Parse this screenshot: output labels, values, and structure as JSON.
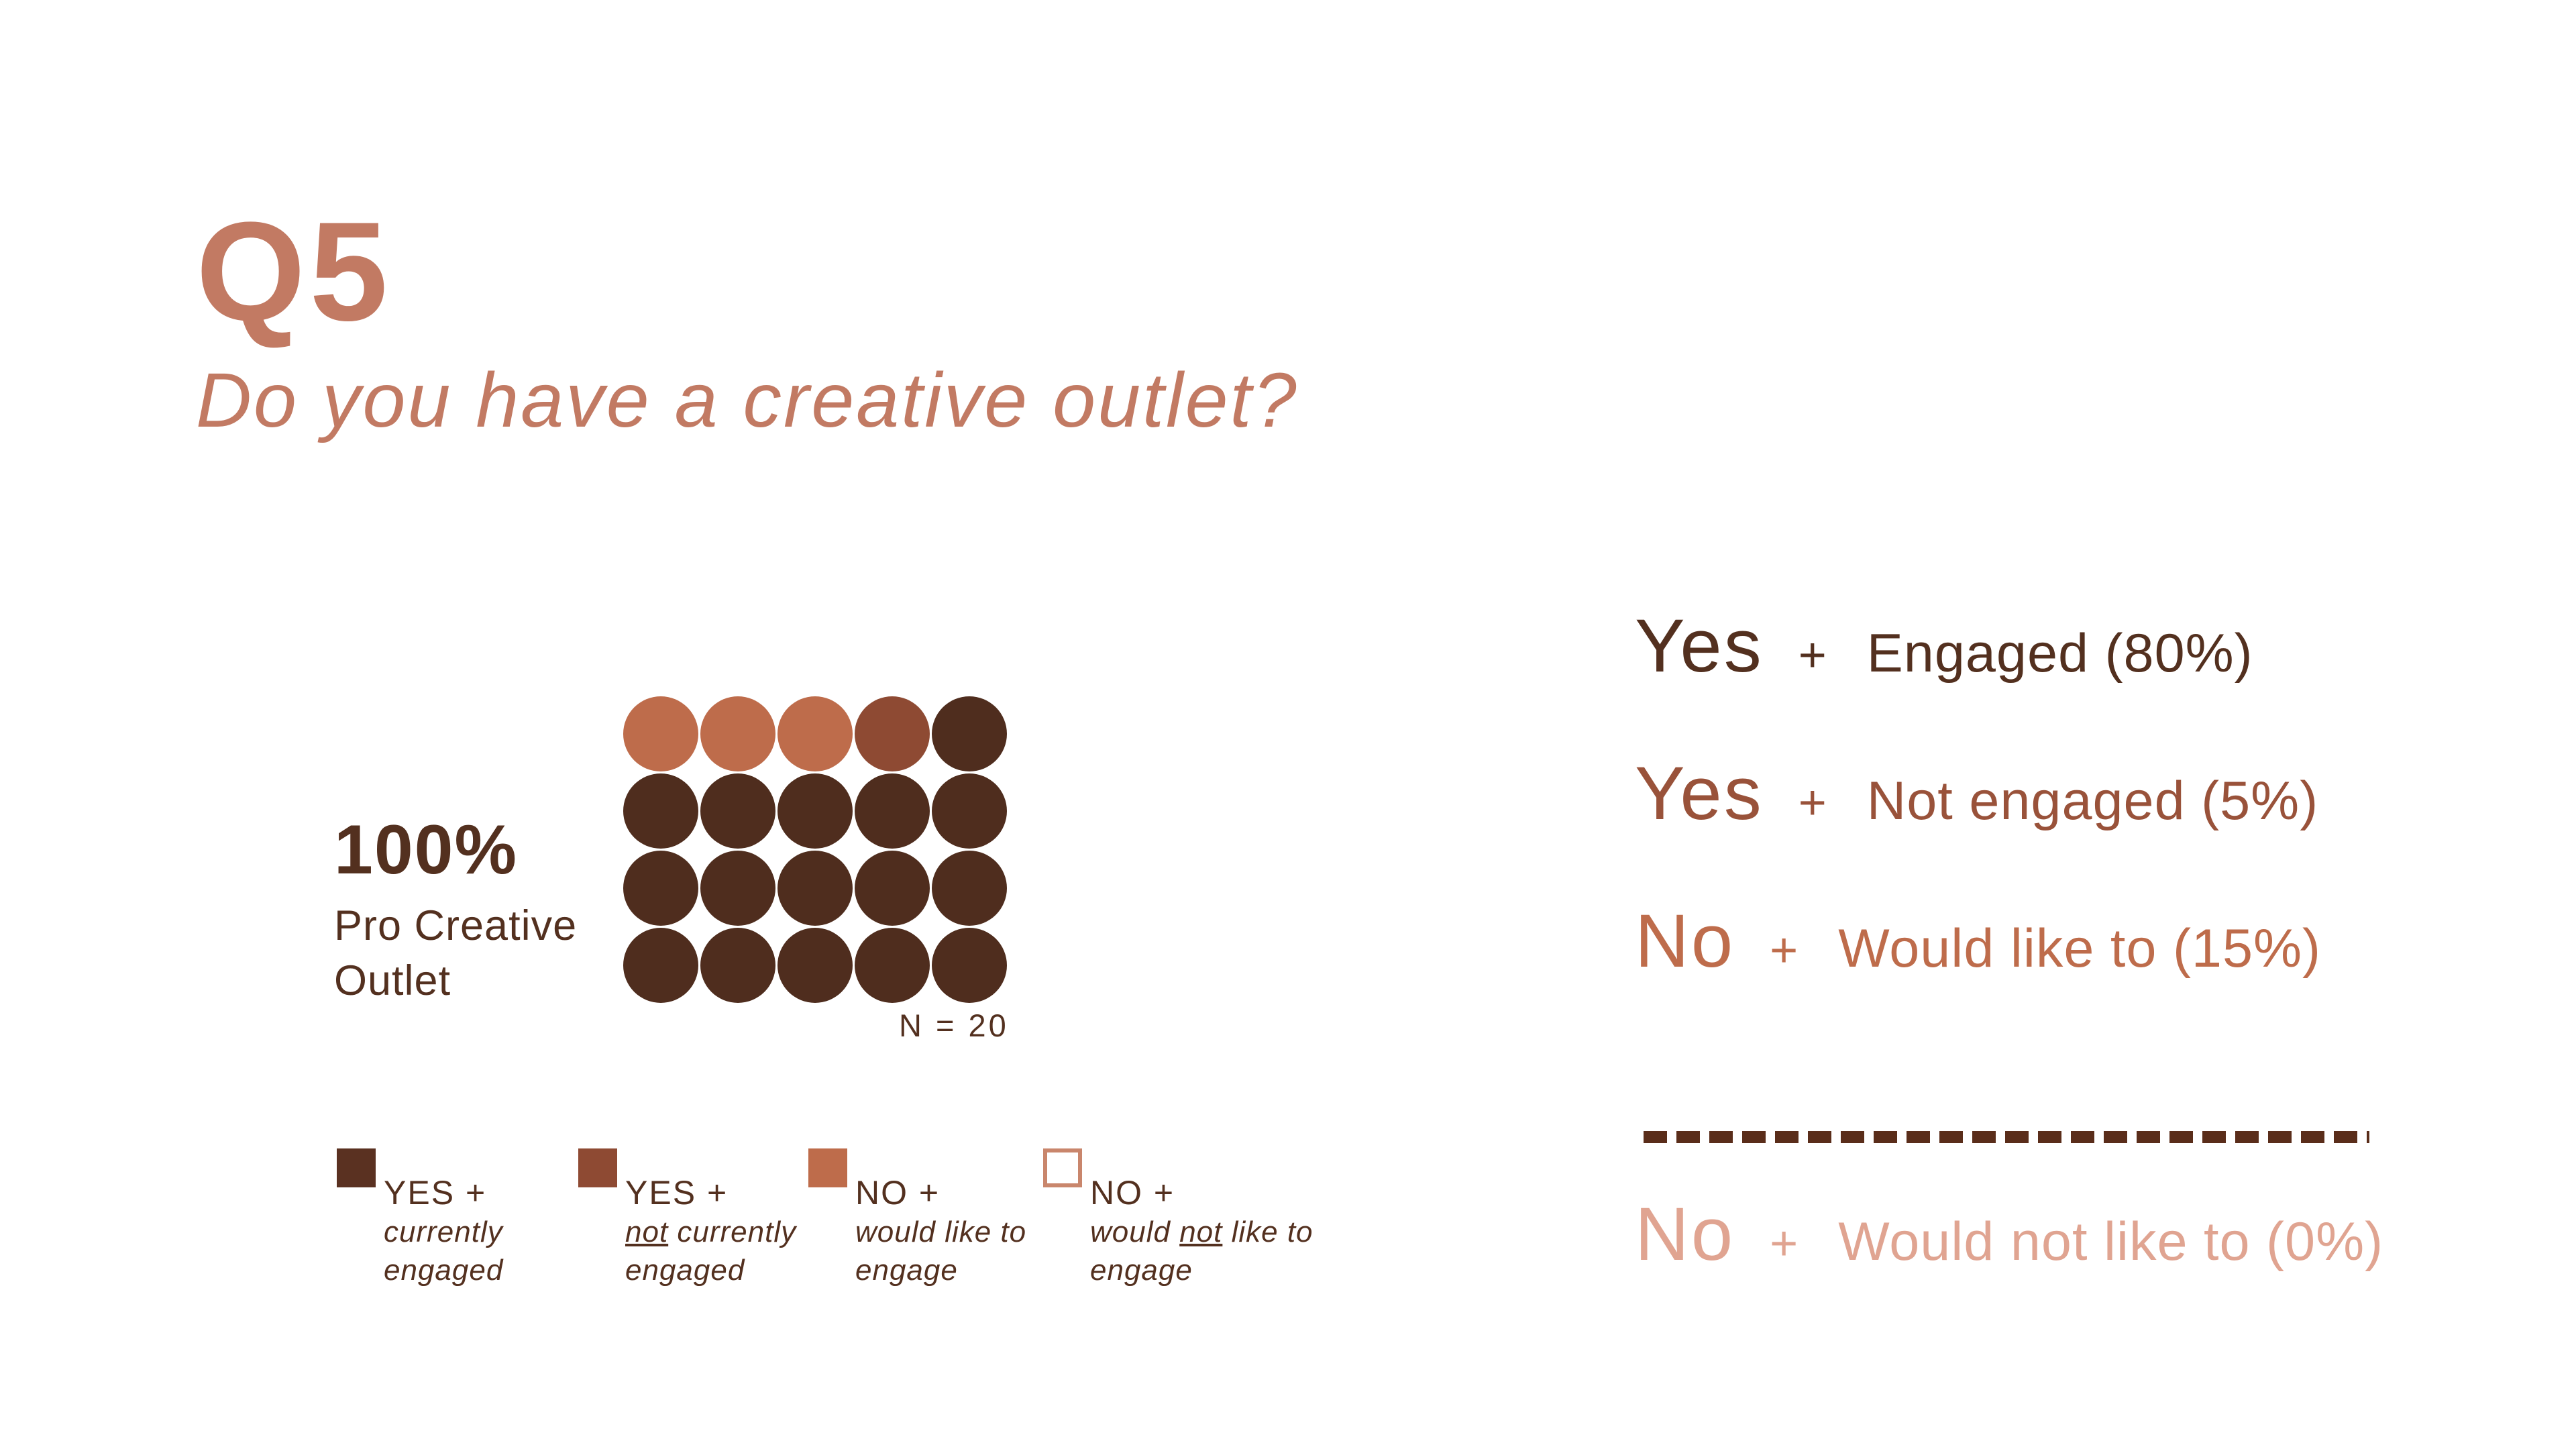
{
  "slide": {
    "title": "Q5",
    "subtitle": "Do you have a creative outlet?",
    "colors": {
      "accent_salmon": "#C27A63",
      "dark_brown": "#53301F",
      "medium_brown": "#8E4A33",
      "orange_terracotta": "#BE6C4B",
      "light_salmon": "#E0A491",
      "divider": "#5A2D1A",
      "background": "#FFFFFF"
    }
  },
  "chart_data": {
    "type": "waffle",
    "title": "Q5 — Do you have a creative outlet?",
    "n": 20,
    "unit_per_dot_pct": 5,
    "grid_rows": 4,
    "grid_cols": 5,
    "categories": [
      "YES + currently engaged",
      "YES + not currently engaged",
      "NO + would like to engage",
      "NO + would not like to engage"
    ],
    "values_pct": [
      80,
      5,
      15,
      0
    ],
    "counts": [
      16,
      1,
      3,
      0
    ],
    "category_colors": [
      "#4F2D1E",
      "#8E4A33",
      "#BE6C4B",
      "#FFFFFF"
    ],
    "summary_label": "100% Pro Creative Outlet",
    "legend_position": "bottom"
  },
  "waffle": {
    "total_label": "100%",
    "total_sublabel_line1": "Pro Creative",
    "total_sublabel_line2": "Outlet",
    "n_label": "N = 20",
    "colors": {
      "yes_engaged": "#4F2D1E",
      "yes_not_engaged": "#8E4A33",
      "no_would_like": "#BE6C4B",
      "no_would_not": "#FFFFFF"
    },
    "grid": [
      [
        "no_would_like",
        "no_would_like",
        "no_would_like",
        "yes_not_engaged",
        "yes_engaged"
      ],
      [
        "yes_engaged",
        "yes_engaged",
        "yes_engaged",
        "yes_engaged",
        "yes_engaged"
      ],
      [
        "yes_engaged",
        "yes_engaged",
        "yes_engaged",
        "yes_engaged",
        "yes_engaged"
      ],
      [
        "yes_engaged",
        "yes_engaged",
        "yes_engaged",
        "yes_engaged",
        "yes_engaged"
      ]
    ]
  },
  "legend": {
    "items": [
      {
        "label": "YES +",
        "sub": [
          [
            {
              "t": "currently"
            }
          ],
          [
            {
              "t": "engaged"
            }
          ]
        ],
        "swatch": {
          "fill": "#5A3121",
          "border": null
        }
      },
      {
        "label": "YES +",
        "sub": [
          [
            {
              "t": "not",
              "u": true
            },
            {
              "t": " currently"
            }
          ],
          [
            {
              "t": "engaged"
            }
          ]
        ],
        "swatch": {
          "fill": "#8E4A33",
          "border": null
        }
      },
      {
        "label": "NO +",
        "sub": [
          [
            {
              "t": "would like to"
            }
          ],
          [
            {
              "t": "engage"
            }
          ]
        ],
        "swatch": {
          "fill": "#BE6C4B",
          "border": null
        }
      },
      {
        "label": "NO +",
        "sub": [
          [
            {
              "t": "would "
            },
            {
              "t": "not",
              "u": true
            },
            {
              "t": " like to"
            }
          ],
          [
            {
              "t": "engage"
            }
          ]
        ],
        "swatch": {
          "fill": "#FFFFFF",
          "border": "#C9866C"
        }
      }
    ]
  },
  "summary": {
    "lines": [
      {
        "word": "Yes",
        "plus": "+",
        "rest": "Engaged (80%)",
        "color": "#53301F"
      },
      {
        "word": "Yes",
        "plus": "+",
        "rest": "Not engaged (5%)",
        "color": "#99523A"
      },
      {
        "word": "No",
        "plus": "+",
        "rest": "Would like to (15%)",
        "color": "#BE6C4B"
      },
      {
        "word": "No",
        "plus": "+",
        "rest": "Would not like to (0%)",
        "color": "#E0A491"
      }
    ]
  }
}
